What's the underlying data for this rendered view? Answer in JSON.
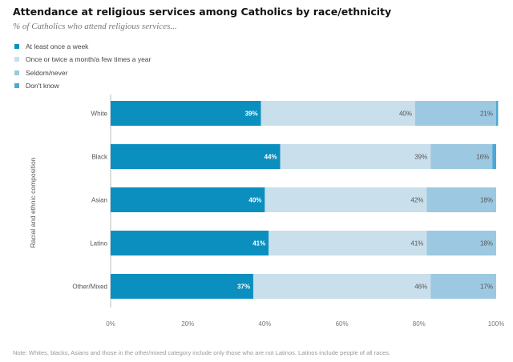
{
  "title": "Attendance at religious services among Catholics by race/ethnicity",
  "subtitle": "% of Catholics who attend religious services...",
  "note": "Note: Whites, blacks, Asians and those in the other/mixed category include only those who are not Latinos. Latinos include people of all races.",
  "chart_data": {
    "type": "bar",
    "orientation": "horizontal",
    "stacked": true,
    "categories": [
      "White",
      "Black",
      "Asian",
      "Latino",
      "Other/Mixed"
    ],
    "series": [
      {
        "name": "At least once a week",
        "color": "#0b8fbf",
        "values": [
          39,
          44,
          40,
          41,
          37
        ],
        "labels": [
          "39%",
          "44%",
          "40%",
          "41%",
          "37%"
        ]
      },
      {
        "name": "Once or twice a month/a few times a year",
        "color": "#c9dfec",
        "values": [
          40,
          39,
          42,
          41,
          46
        ],
        "labels": [
          "40%",
          "39%",
          "42%",
          "41%",
          "46%"
        ]
      },
      {
        "name": "Seldom/never",
        "color": "#9dc8e1",
        "values": [
          21,
          16,
          18,
          18,
          17
        ],
        "labels": [
          "21%",
          "16%",
          "18%",
          "18%",
          "17%"
        ]
      },
      {
        "name": "Don't know",
        "color": "#4ba9d3",
        "values": [
          0.5,
          1,
          0,
          0,
          0
        ],
        "labels": [
          "",
          "",
          "",
          "",
          ""
        ]
      }
    ],
    "xlim": [
      0,
      100
    ],
    "xticks": [
      "0%",
      "20%",
      "40%",
      "60%",
      "80%",
      "100%"
    ],
    "ylabel": "Racial and ethnic composition",
    "xlabel": "",
    "legend": "top-left"
  }
}
